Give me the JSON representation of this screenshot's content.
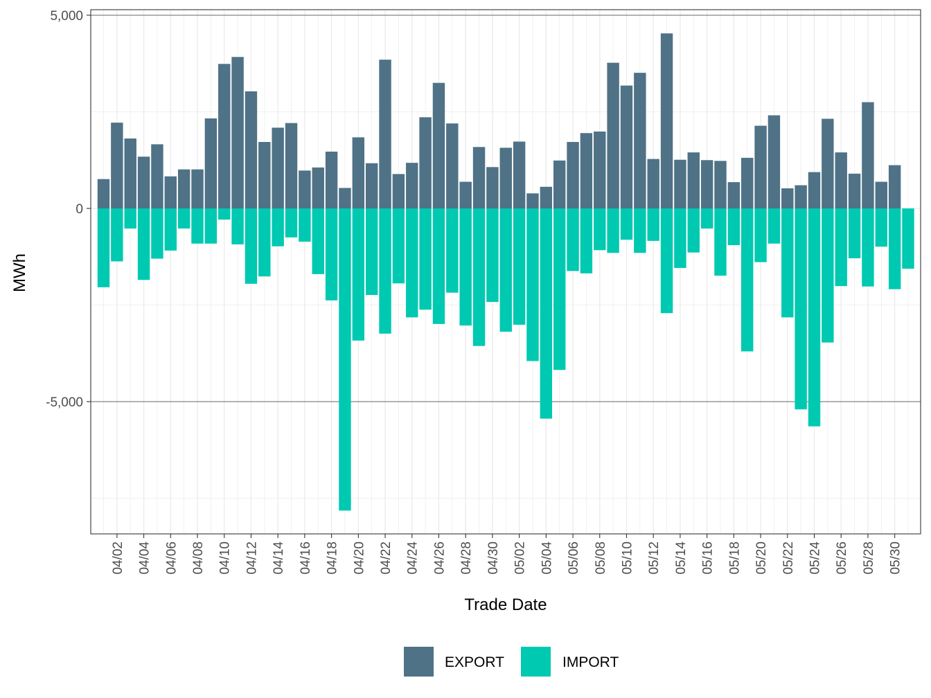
{
  "chart_data": {
    "type": "bar",
    "stacking": "diverging",
    "title": "",
    "xlabel": "Trade Date",
    "ylabel": "MWh",
    "ylim": [
      -8400,
      5150
    ],
    "y_ticks": [
      5000,
      0,
      -5000
    ],
    "y_tick_labels": [
      "5,000",
      "0",
      "-5,000"
    ],
    "x_tick_labels": [
      "04/02",
      "04/04",
      "04/06",
      "04/08",
      "04/10",
      "04/12",
      "04/14",
      "04/16",
      "04/18",
      "04/20",
      "04/22",
      "04/24",
      "04/26",
      "04/28",
      "04/30",
      "05/02",
      "05/04",
      "05/06",
      "05/08",
      "05/10",
      "05/12",
      "05/14",
      "05/16",
      "05/18",
      "05/20",
      "05/22",
      "05/24",
      "05/26",
      "05/28",
      "05/30"
    ],
    "categories": [
      "04/01",
      "04/02",
      "04/03",
      "04/04",
      "04/05",
      "04/06",
      "04/07",
      "04/08",
      "04/09",
      "04/10",
      "04/11",
      "04/12",
      "04/13",
      "04/14",
      "04/15",
      "04/16",
      "04/17",
      "04/18",
      "04/19",
      "04/20",
      "04/21",
      "04/22",
      "04/23",
      "04/24",
      "04/25",
      "04/26",
      "04/27",
      "04/28",
      "04/29",
      "04/30",
      "05/01",
      "05/02",
      "05/03",
      "05/04",
      "05/05",
      "05/06",
      "05/07",
      "05/08",
      "05/09",
      "05/10",
      "05/11",
      "05/12",
      "05/13",
      "05/14",
      "05/15",
      "05/16",
      "05/17",
      "05/18",
      "05/19",
      "05/20",
      "05/21",
      "05/22",
      "05/23",
      "05/24",
      "05/25",
      "05/26",
      "05/27",
      "05/28",
      "05/29",
      "05/30",
      "05/31"
    ],
    "series": [
      {
        "name": "EXPORT",
        "color": "#4f7286",
        "values": [
          760,
          2220,
          1810,
          1340,
          1660,
          830,
          1010,
          1010,
          2330,
          3740,
          3920,
          3030,
          1720,
          2090,
          2210,
          980,
          1060,
          1470,
          530,
          1840,
          1170,
          3850,
          890,
          1180,
          2360,
          3250,
          2200,
          690,
          1590,
          1070,
          1570,
          1730,
          390,
          560,
          1240,
          1720,
          1950,
          1990,
          3770,
          3180,
          3510,
          1280,
          4530,
          1260,
          1450,
          1250,
          1230,
          680,
          1310,
          2140,
          2410,
          520,
          600,
          940,
          2320,
          1450,
          900,
          2750,
          690,
          1120,
          0
        ],
        "legend_label": "EXPORT"
      },
      {
        "name": "IMPORT",
        "color": "#00c9b1",
        "values": [
          -2040,
          -1370,
          -520,
          -1850,
          -1300,
          -1090,
          -520,
          -910,
          -910,
          -290,
          -930,
          -1950,
          -1760,
          -980,
          -750,
          -860,
          -1700,
          -2380,
          -7820,
          -3420,
          -2240,
          -3240,
          -1940,
          -2820,
          -2620,
          -2990,
          -2180,
          -3030,
          -3560,
          -2420,
          -3190,
          -3010,
          -3950,
          -5440,
          -4180,
          -1620,
          -1680,
          -1080,
          -1150,
          -810,
          -1150,
          -840,
          -2710,
          -1540,
          -1140,
          -520,
          -1740,
          -950,
          -3700,
          -1390,
          -910,
          -2820,
          -5200,
          -5640,
          -3470,
          -2010,
          -1290,
          -2020,
          -990,
          -2090,
          -1560
        ]
      }
    ],
    "legend": {
      "position": "bottom",
      "items": [
        "EXPORT",
        "IMPORT"
      ]
    },
    "grid": true
  }
}
